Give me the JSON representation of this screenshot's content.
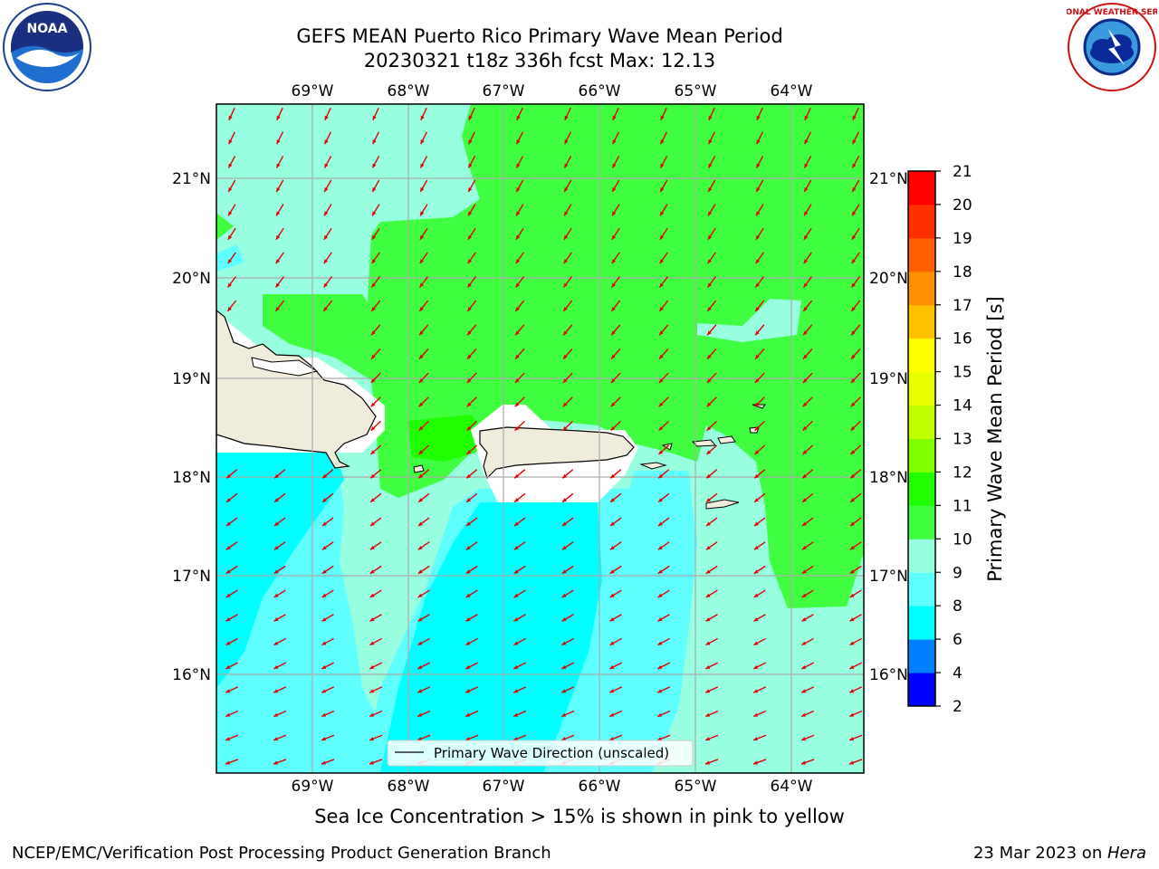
{
  "title": {
    "line1": "GEFS MEAN Puerto Rico Primary Wave Mean Period",
    "line2": "20230321 t18z 336h fcst   Max: 12.13"
  },
  "note": "Sea Ice Concentration > 15% is shown in pink to yellow",
  "footer": {
    "left": "NCEP/EMC/Verification Post Processing Product Generation Branch",
    "right_date": "23 Mar 2023 on ",
    "right_host": "Hera"
  },
  "logos": {
    "noaa": "NOAA",
    "nws": "NATIONAL WEATHER SERVICE"
  },
  "map": {
    "lon_labels": [
      "69°W",
      "68°W",
      "67°W",
      "66°W",
      "65°W",
      "64°W"
    ],
    "lat_labels": [
      "21°N",
      "20°N",
      "19°N",
      "18°N",
      "17°N",
      "16°N"
    ],
    "legend_label": "Primary Wave Direction (unscaled)",
    "arrow_color": "#e00000",
    "land_color": "#f0ecdc"
  },
  "colorbar": {
    "label": "Primary Wave Mean Period [s]",
    "ticks": [
      "2",
      "4",
      "6",
      "8",
      "9",
      "10",
      "11",
      "12",
      "13",
      "14",
      "15",
      "16",
      "17",
      "18",
      "19",
      "20",
      "21"
    ],
    "colors": [
      "#0000ff",
      "#0080ff",
      "#00ffff",
      "#60ffff",
      "#98ffe0",
      "#40ff40",
      "#20ff00",
      "#80ff00",
      "#c0ff00",
      "#e8ff00",
      "#ffff00",
      "#ffc000",
      "#ff9000",
      "#ff6000",
      "#ff3000",
      "#ff0000"
    ]
  },
  "chart_data": {
    "type": "heatmap",
    "title": "GEFS MEAN Puerto Rico Primary Wave Mean Period",
    "subtitle": "20230321 t18z 336h fcst   Max: 12.13",
    "xlabel": "",
    "ylabel": "",
    "x_ticks": [
      "69°W",
      "68°W",
      "67°W",
      "66°W",
      "65°W",
      "64°W"
    ],
    "y_ticks": [
      "21°N",
      "20°N",
      "19°N",
      "18°N",
      "17°N",
      "16°N"
    ],
    "colorbar_label": "Primary Wave Mean Period [s]",
    "colorbar_range": [
      2,
      21
    ],
    "max_value": 12.13,
    "grid": true,
    "legend": {
      "placement": "bottom-center",
      "entries": [
        "Primary Wave Direction (unscaled)"
      ]
    }
  }
}
